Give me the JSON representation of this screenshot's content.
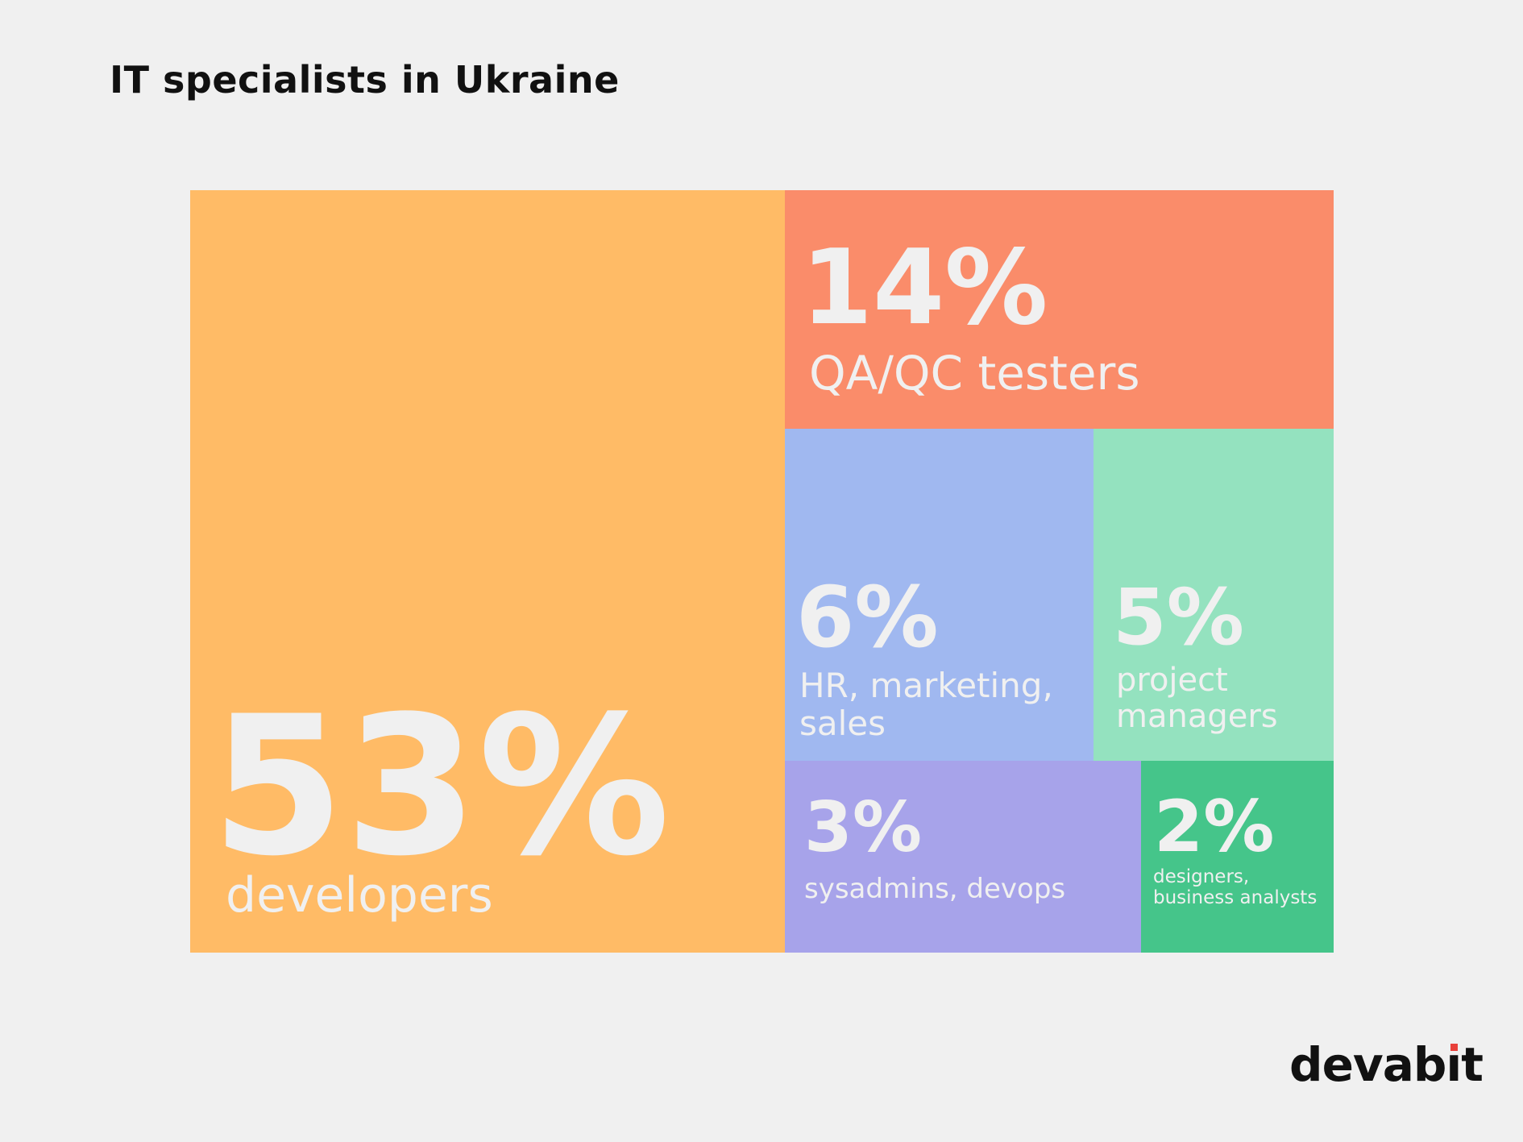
{
  "title": "IT specialists in Ukraine",
  "logo": {
    "prefix": "devab",
    "i": "ı",
    "suffix": "t",
    "accent": "#e8403a"
  },
  "chart_data": {
    "type": "treemap",
    "title": "IT specialists in Ukraine",
    "unit": "%",
    "items": [
      {
        "value": 53,
        "pct_label": "53%",
        "label_lines": [
          "developers"
        ],
        "color": "#ffbb66"
      },
      {
        "value": 14,
        "pct_label": "14%",
        "label_lines": [
          "QA/QC testers"
        ],
        "color": "#fa8c6a"
      },
      {
        "value": 6,
        "pct_label": "6%",
        "label_lines": [
          "HR, marketing,",
          "sales"
        ],
        "color": "#a0b8f0"
      },
      {
        "value": 5,
        "pct_label": "5%",
        "label_lines": [
          "project",
          "managers"
        ],
        "color": "#94e2bf"
      },
      {
        "value": 3,
        "pct_label": "3%",
        "label_lines": [
          "sysadmins, devops"
        ],
        "color": "#a7a3ea"
      },
      {
        "value": 2,
        "pct_label": "2%",
        "label_lines": [
          "designers,",
          "business analysts"
        ],
        "color": "#45c58a"
      }
    ]
  }
}
